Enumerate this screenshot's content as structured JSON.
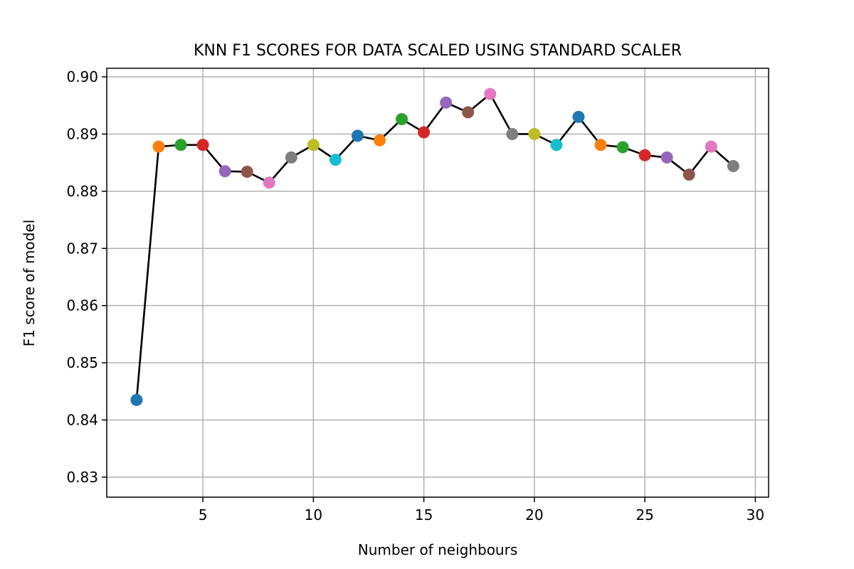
{
  "chart_data": {
    "type": "line",
    "title": "KNN F1 SCORES FOR DATA SCALED USING STANDARD SCALER",
    "xlabel": "Number of neighbours",
    "ylabel": "F1 score of model",
    "xlim": [
      0.65,
      30.6
    ],
    "ylim": [
      0.8265,
      0.9015
    ],
    "xticks": [
      5,
      10,
      15,
      20,
      25,
      30
    ],
    "yticks": [
      0.83,
      0.84,
      0.85,
      0.86,
      0.87,
      0.88,
      0.89,
      0.9
    ],
    "grid": true,
    "line_color": "#000000",
    "marker_colors": [
      "#1f77b4",
      "#ff7f0e",
      "#2ca02c",
      "#d62728",
      "#9467bd",
      "#8c564b",
      "#e377c2",
      "#7f7f7f",
      "#bcbd22",
      "#17becf"
    ],
    "x": [
      2,
      3,
      4,
      5,
      6,
      7,
      8,
      9,
      10,
      11,
      12,
      13,
      14,
      15,
      16,
      17,
      18,
      19,
      20,
      21,
      22,
      23,
      24,
      25,
      26,
      27,
      28,
      29
    ],
    "values": [
      0.8435,
      0.8878,
      0.8881,
      0.8881,
      0.8835,
      0.8834,
      0.8815,
      0.8859,
      0.8881,
      0.8855,
      0.8897,
      0.8889,
      0.8926,
      0.8903,
      0.8955,
      0.8938,
      0.897,
      0.89,
      0.89,
      0.8881,
      0.893,
      0.8881,
      0.8877,
      0.8863,
      0.8859,
      0.8829,
      0.8878,
      0.8844
    ]
  }
}
